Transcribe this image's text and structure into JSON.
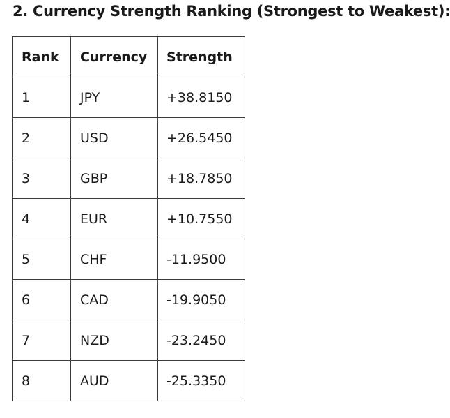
{
  "heading": "2. Currency Strength Ranking (Strongest to Weakest):",
  "table": {
    "headers": [
      "Rank",
      "Currency",
      "Strength"
    ],
    "rows": [
      {
        "rank": "1",
        "currency": "JPY",
        "strength": "+38.8150"
      },
      {
        "rank": "2",
        "currency": "USD",
        "strength": "+26.5450"
      },
      {
        "rank": "3",
        "currency": "GBP",
        "strength": "+18.7850"
      },
      {
        "rank": "4",
        "currency": "EUR",
        "strength": "+10.7550"
      },
      {
        "rank": "5",
        "currency": "CHF",
        "strength": "-11.9500"
      },
      {
        "rank": "6",
        "currency": "CAD",
        "strength": "-19.9050"
      },
      {
        "rank": "7",
        "currency": "NZD",
        "strength": "-23.2450"
      },
      {
        "rank": "8",
        "currency": "AUD",
        "strength": "-25.3350"
      }
    ]
  }
}
